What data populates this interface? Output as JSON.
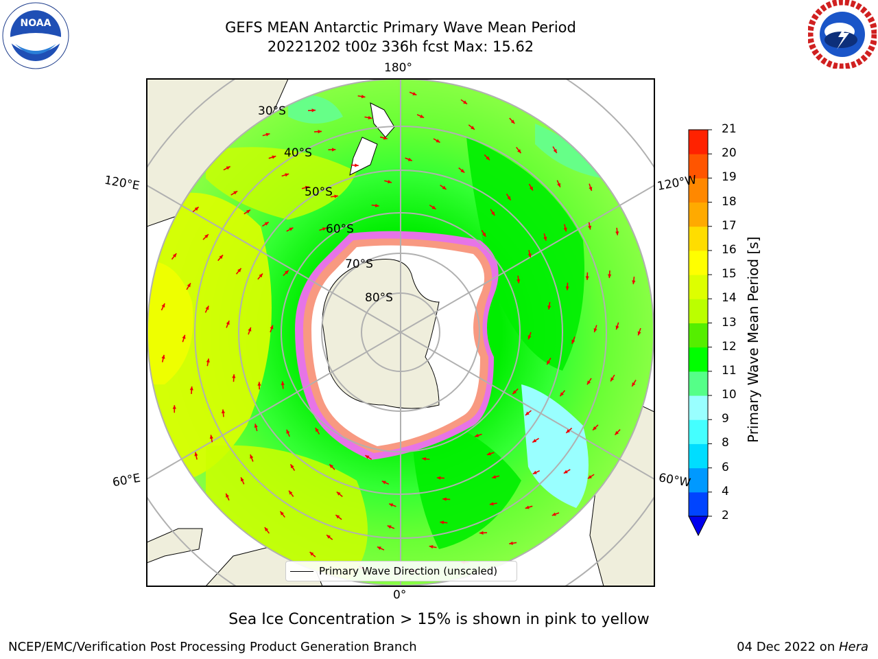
{
  "header": {
    "title_line1": "GEFS MEAN Antarctic Primary Wave Mean Period",
    "title_line2": "20221202 t00z 336h fcst   Max: 15.62"
  },
  "logos": {
    "left": "NOAA",
    "right": "NATIONAL WEATHER SERVICE"
  },
  "map": {
    "projection": "south-polar-stereographic",
    "lon_labels": {
      "top": "180°",
      "bottom": "0°",
      "left_upper": "120°E",
      "left_lower": "60°E",
      "right_upper": "120°W",
      "right_lower": "60°W"
    },
    "lat_labels": [
      "30°S",
      "40°S",
      "50°S",
      "60°S",
      "70°S",
      "80°S"
    ],
    "legend_label": "Primary Wave Direction (unscaled)",
    "colors": {
      "land": "#efeedc",
      "ice": "#ffffff",
      "ice_edge": "#ff33ff",
      "period_9": "#66ff88",
      "period_10": "#33ff33",
      "period_11": "#00ee00",
      "period_12": "#88ee00",
      "period_13": "#ccff00",
      "period_14": "#eeff00",
      "period_8": "#88ffff",
      "arrow": "#ee0000"
    }
  },
  "colorbar": {
    "title": "Primary Wave Mean Period [s]",
    "ticks": [
      "2",
      "4",
      "6",
      "8",
      "9",
      "10",
      "11",
      "12",
      "13",
      "14",
      "15",
      "16",
      "17",
      "18",
      "19",
      "20",
      "21"
    ],
    "colors": [
      "#0044ff",
      "#0099ff",
      "#00ddff",
      "#44ffff",
      "#99ffff",
      "#55ff88",
      "#00ff00",
      "#55ee00",
      "#bbff00",
      "#ddff00",
      "#ffff00",
      "#ffdd00",
      "#ffaa00",
      "#ff8800",
      "#ff5500",
      "#ff2200"
    ],
    "under_color": "#0000ee"
  },
  "note": "Sea Ice Concentration > 15% is shown in pink to yellow",
  "footer": {
    "left": "NCEP/EMC/Verification Post Processing Product Generation Branch",
    "right_date": "04 Dec 2022 on ",
    "right_machine": "Hera"
  }
}
